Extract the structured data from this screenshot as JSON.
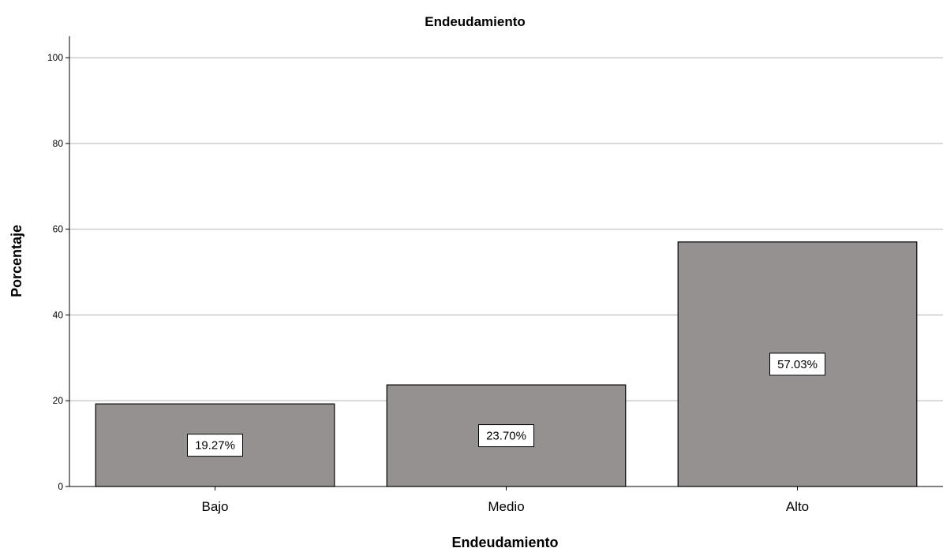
{
  "chart_data": {
    "type": "bar",
    "title": "Endeudamiento",
    "xlabel": "Endeudamiento",
    "ylabel": "Porcentaje",
    "categories": [
      "Bajo",
      "Medio",
      "Alto"
    ],
    "values": [
      19.27,
      23.7,
      57.03
    ],
    "data_labels": [
      "19.27%",
      "23.70%",
      "57.03%"
    ],
    "ylim": [
      0,
      105
    ],
    "yticks": [
      0,
      20,
      40,
      60,
      80,
      100
    ],
    "grid": true,
    "legend": "none",
    "colors": {
      "bar": "#959191",
      "bar_edge": "#000000",
      "grid": "#b4b4b4",
      "label_bg": "#ffffff"
    }
  }
}
